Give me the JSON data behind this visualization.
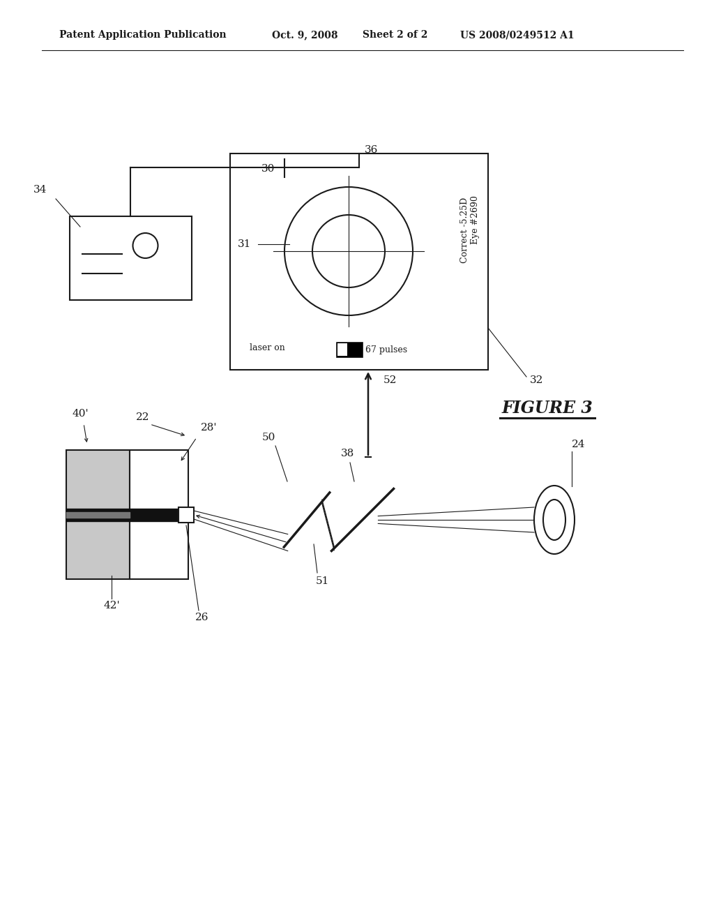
{
  "bg_color": "#ffffff",
  "header_text": "Patent Application Publication",
  "header_date": "Oct. 9, 2008",
  "header_sheet": "Sheet 2 of 2",
  "header_patent": "US 2008/0249512 A1",
  "figure_label": "FIGURE 3",
  "label_36": "36",
  "label_34": "34",
  "label_32": "32",
  "label_30": "30",
  "label_31": "31",
  "label_22": "22",
  "label_28p": "28'",
  "label_40p": "40'",
  "label_42p": "42'",
  "label_26": "26",
  "label_50": "50",
  "label_52": "52",
  "label_38": "38",
  "label_51": "51",
  "label_24": "24",
  "screen_text_eye": "Eye #2690",
  "screen_text_correct": "Correct -5.25D",
  "screen_text_laser": "laser on",
  "screen_text_pulses": "67 pulses",
  "line_color": "#1a1a1a",
  "line_width": 1.5,
  "thin_line": 0.8
}
